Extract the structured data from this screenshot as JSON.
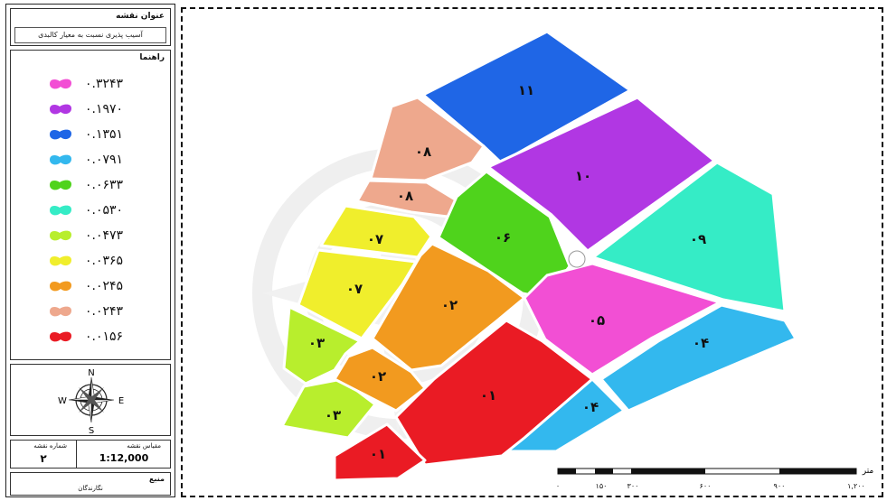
{
  "legend": {
    "map_title_heading": "عنوان نقشه",
    "map_title": "آسیب پذیری نسبت به معیار کالبدی",
    "legend_heading": "راهنما",
    "items": [
      {
        "label": "۰.۳۲۴۳",
        "color": "#f24fd4"
      },
      {
        "label": "۰.۱۹۷۰",
        "color": "#b137e3"
      },
      {
        "label": "۰.۱۳۵۱",
        "color": "#1f66e6"
      },
      {
        "label": "۰.۰۷۹۱",
        "color": "#33b8ee"
      },
      {
        "label": "۰.۰۶۳۳",
        "color": "#4fd31c"
      },
      {
        "label": "۰.۰۵۳۰",
        "color": "#35ecc6"
      },
      {
        "label": "۰.۰۴۷۳",
        "color": "#b8ee2d"
      },
      {
        "label": "۰.۰۳۶۵",
        "color": "#f0ee2c"
      },
      {
        "label": "۰.۰۲۴۵",
        "color": "#f29a1f"
      },
      {
        "label": "۰.۰۲۴۳",
        "color": "#eea88d"
      },
      {
        "label": "۰.۰۱۵۶",
        "color": "#ea1b24"
      }
    ]
  },
  "compass": {
    "n": "N",
    "s": "S",
    "e": "E",
    "w": "W"
  },
  "info": {
    "sheet_label": "شماره نقشه",
    "sheet_number": "۲",
    "scale_label": "مقیاس نقشه",
    "scale_value": "1:12,000",
    "source_label": "منبع",
    "source_value": "نگارندگان"
  },
  "scalebar": {
    "unit": "متر",
    "ticks": [
      "۰",
      "۱۵۰",
      "۳۰۰",
      "۶۰۰",
      "۹۰۰",
      "۱,۲۰۰"
    ]
  },
  "zones": [
    {
      "id": "11",
      "label": "۱۱",
      "color": "#1f66e6"
    },
    {
      "id": "10",
      "label": "۱۰",
      "color": "#b137e3"
    },
    {
      "id": "09",
      "label": "۰۹",
      "color": "#35ecc6"
    },
    {
      "id": "08a",
      "label": "۰۸",
      "color": "#eea88d"
    },
    {
      "id": "08b",
      "label": "۰۸",
      "color": "#eea88d"
    },
    {
      "id": "07a",
      "label": "۰۷",
      "color": "#f0ee2c"
    },
    {
      "id": "07b",
      "label": "۰۷",
      "color": "#f0ee2c"
    },
    {
      "id": "06",
      "label": "۰۶",
      "color": "#4fd31c"
    },
    {
      "id": "05",
      "label": "۰۵",
      "color": "#f24fd4"
    },
    {
      "id": "04a",
      "label": "۰۴",
      "color": "#33b8ee"
    },
    {
      "id": "04b",
      "label": "۰۴",
      "color": "#33b8ee"
    },
    {
      "id": "03a",
      "label": "۰۳",
      "color": "#b8ee2d"
    },
    {
      "id": "03b",
      "label": "۰۳",
      "color": "#b8ee2d"
    },
    {
      "id": "02a",
      "label": "۰۲",
      "color": "#f29a1f"
    },
    {
      "id": "02b",
      "label": "۰۲",
      "color": "#f29a1f"
    },
    {
      "id": "01a",
      "label": "۰۱",
      "color": "#ea1b24"
    },
    {
      "id": "01b",
      "label": "۰۱",
      "color": "#ea1b24"
    }
  ]
}
